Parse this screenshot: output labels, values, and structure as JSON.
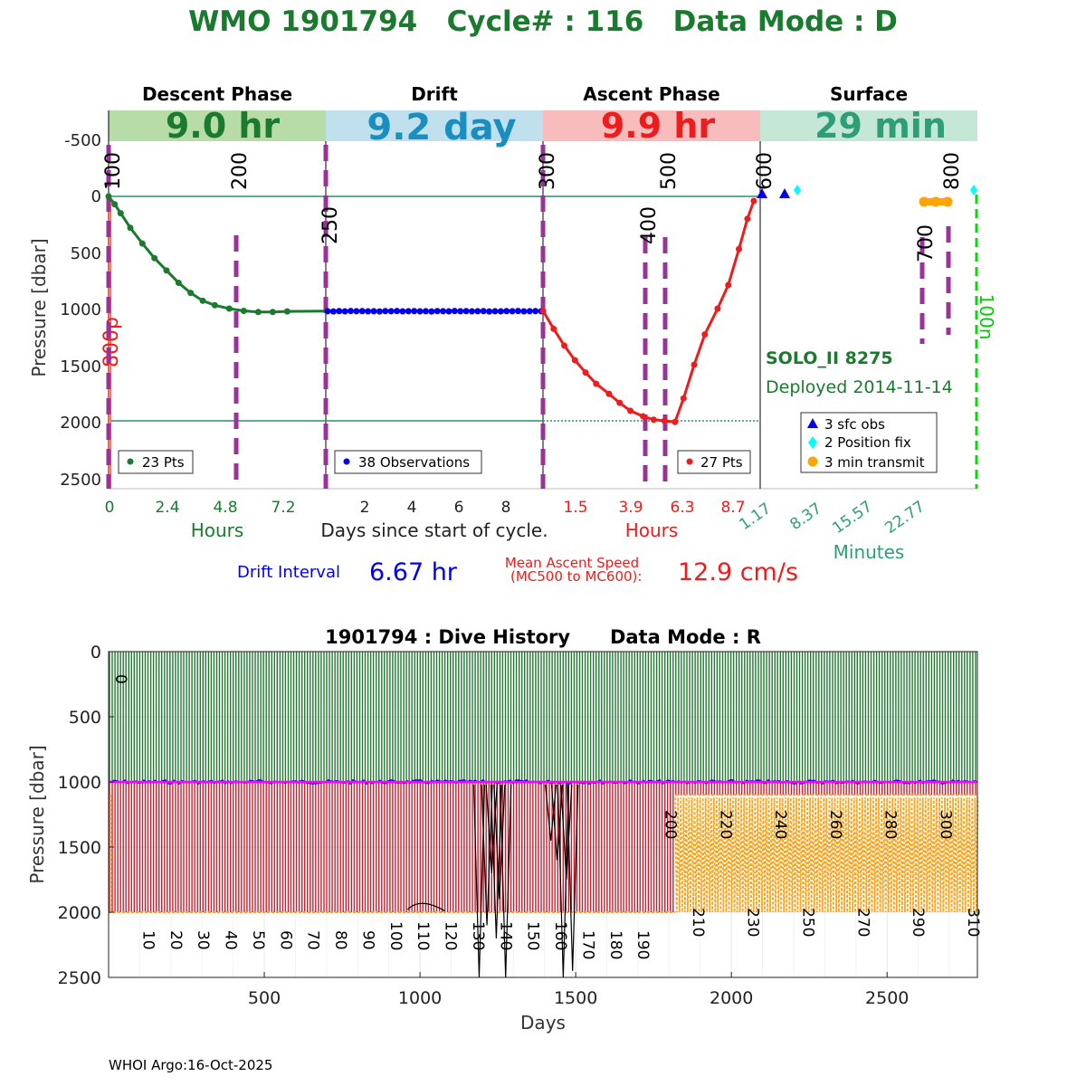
{
  "header": {
    "title": "WMO 1901794   Cycle# : 116   Data Mode : D",
    "title_color": "#1a7a2e"
  },
  "chart_data": [
    {
      "type": "line",
      "name": "cycle-profile",
      "ylabel": "Pressure [dbar]",
      "ylim": [
        -700,
        2600
      ],
      "yticks": [
        "-500",
        "0",
        "500",
        "1000",
        "1500",
        "2000",
        "2500"
      ],
      "phases": [
        {
          "label": "Descent Phase",
          "duration": "9.0 hr",
          "band_color": "#b8dca8",
          "text_color": "#1a7a2e"
        },
        {
          "label": "Drift",
          "duration": "9.2 day",
          "band_color": "#bfe0ec",
          "text_color": "#1a8fbf"
        },
        {
          "label": "Ascent Phase",
          "duration": "9.9 hr",
          "band_color": "#f9bcbc",
          "text_color": "#ee1c1c"
        },
        {
          "label": "Surface",
          "duration": "29 min",
          "band_color": "#c5e8d6",
          "text_color": "#2e9e78"
        }
      ],
      "measurement_codes": [
        "100",
        "200",
        "250",
        "300",
        "400",
        "500",
        "600",
        "700",
        "800"
      ],
      "side_labels": {
        "left": "800p",
        "right": "100n"
      },
      "descent": {
        "points_label": "23 Pts",
        "color": "#1a7a2e",
        "xticks": [
          "0",
          "2.4",
          "4.8",
          "7.2"
        ],
        "xlabel": "Hours",
        "x_max_hr": 9.0,
        "hours": [
          0,
          0.25,
          0.5,
          0.9,
          1.4,
          1.9,
          2.4,
          2.9,
          3.4,
          3.9,
          4.4,
          5.0,
          5.6,
          6.2,
          6.8,
          7.4
        ],
        "pressure": [
          0,
          70,
          150,
          280,
          420,
          550,
          660,
          770,
          860,
          930,
          970,
          1000,
          1020,
          1030,
          1030,
          1025
        ]
      },
      "drift": {
        "points_label": "38 Observations",
        "color": "#0000ee",
        "xticks": [
          "2",
          "4",
          "6",
          "8"
        ],
        "xlabel": "Days since start of cycle.",
        "x_max_day": 9.2,
        "n_obs": 38,
        "pressure": [
          1023,
          1025,
          1022,
          1024,
          1021,
          1023,
          1022,
          1024,
          1023,
          1025,
          1022,
          1023,
          1021,
          1024,
          1023,
          1022,
          1024,
          1023,
          1025,
          1022,
          1023,
          1024,
          1021,
          1023,
          1022,
          1024,
          1023,
          1022,
          1025,
          1023,
          1024,
          1022,
          1023,
          1021,
          1024,
          1023,
          1022,
          1023
        ]
      },
      "ascent": {
        "points_label": "27 Pts",
        "color": "#ee1c1c",
        "xticks": [
          "1.5",
          "3.9",
          "6.3",
          "8.7"
        ],
        "xlabel": "Hours",
        "x_min_hr": -0.3,
        "x_max_hr": 9.9,
        "hours": [
          -0.3,
          0.2,
          0.7,
          1.2,
          1.7,
          2.2,
          2.8,
          3.3,
          3.8,
          4.4,
          4.9,
          5.4,
          5.9,
          6.3,
          6.8,
          7.3,
          7.9,
          8.4,
          8.9,
          9.3,
          9.6
        ],
        "pressure": [
          1020,
          1180,
          1330,
          1460,
          1570,
          1670,
          1760,
          1840,
          1910,
          1960,
          1990,
          2000,
          2010,
          1800,
          1500,
          1230,
          1000,
          790,
          470,
          200,
          40
        ]
      },
      "surface": {
        "xticks": [
          "1.17",
          "8.37",
          "15.57",
          "22.77"
        ],
        "xlabel": "Minutes",
        "color": "#2e9e78",
        "float_name": "SOLO_II 8275",
        "deployed": "Deployed 2014-11-14"
      },
      "legend": [
        {
          "label": "3 sfc obs",
          "color": "#0000ee",
          "marker": "triangle"
        },
        {
          "label": "2 Position fix",
          "color": "#00ffff",
          "marker": "diamond"
        },
        {
          "label": "3 min transmit",
          "color": "#ffa500",
          "marker": "circle"
        }
      ],
      "reference_lines": [
        0,
        2000
      ]
    },
    {
      "type": "line",
      "name": "dive-history",
      "title": "1901794 : Dive History      Data Mode : R",
      "xlabel": "Days",
      "ylabel": "Pressure [dbar]",
      "xlim": [
        0,
        2790
      ],
      "ylim": [
        0,
        2500
      ],
      "xticks": [
        500,
        1000,
        1500,
        2000,
        2500
      ],
      "yticks": [
        0,
        500,
        1000,
        1500,
        2000,
        2500
      ],
      "n_cycles": 316,
      "drift_pressure": 1000,
      "park_depth_early": 2000,
      "park_depth_late": 1100,
      "mode_change_day": 1820,
      "cycle_labels": [
        "0",
        "10",
        "20",
        "30",
        "40",
        "50",
        "60",
        "70",
        "80",
        "90",
        "100",
        "110",
        "120",
        "130",
        "140",
        "150",
        "160",
        "170",
        "180",
        "190",
        "200",
        "210",
        "220",
        "230",
        "240",
        "250",
        "260",
        "270",
        "280",
        "290",
        "300",
        "310"
      ]
    }
  ],
  "stats": {
    "drift_interval_label": "Drift Interval",
    "drift_interval_value": "6.67 hr",
    "ascent_label_1": "Mean Ascent Speed",
    "ascent_label_2": "(MC500 to MC600):",
    "ascent_value": "12.9 cm/s"
  },
  "footer": {
    "credit": "WHOI Argo:16-Oct-2025"
  }
}
